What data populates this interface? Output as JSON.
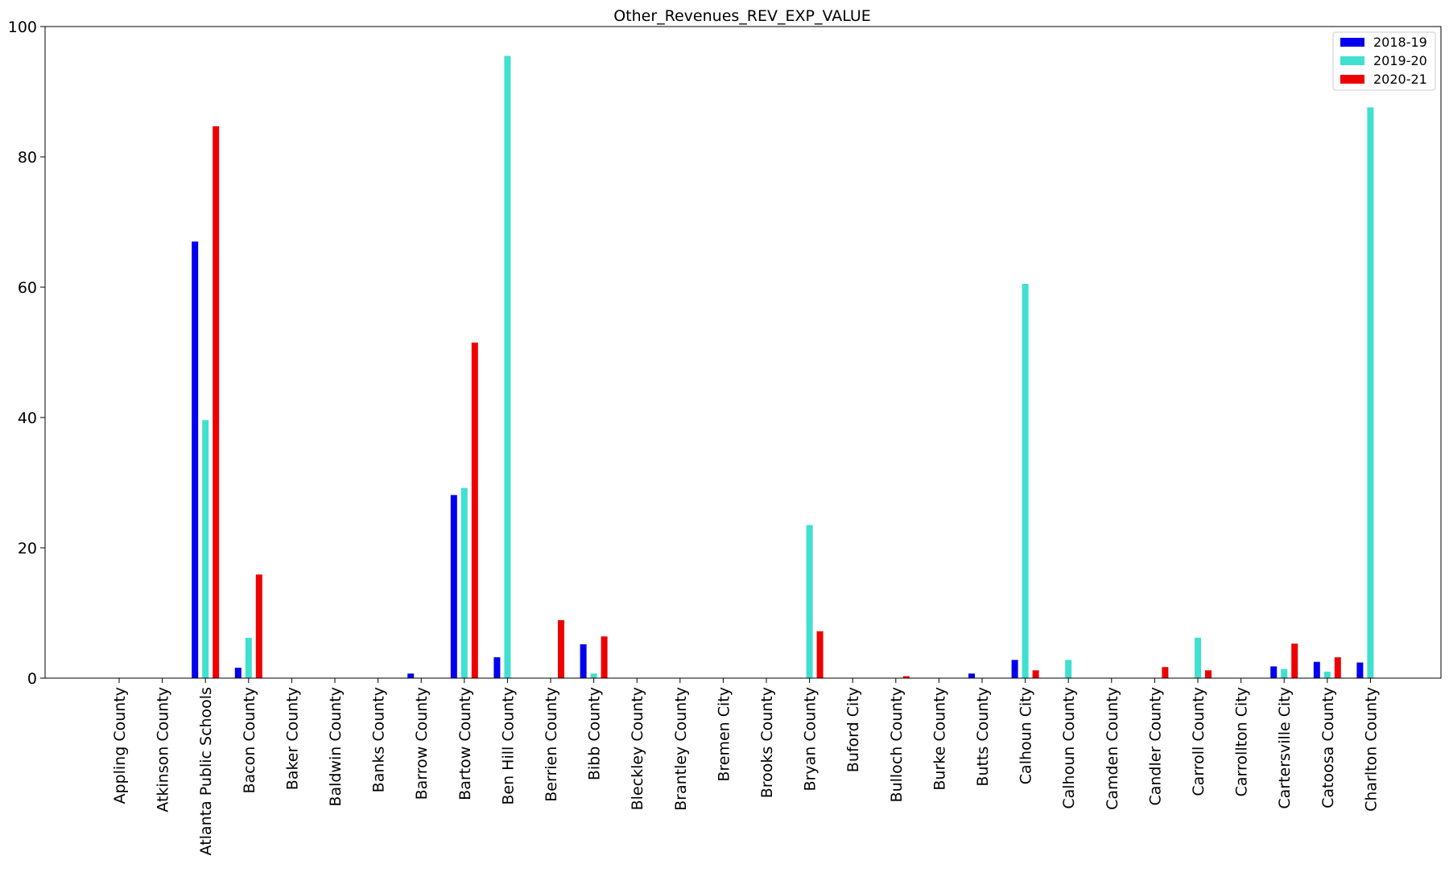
{
  "chart_data": {
    "type": "bar",
    "title": "Other_Revenues_REV_EXP_VALUE",
    "xlabel": "",
    "ylabel": "",
    "ylim": [
      0,
      100
    ],
    "yticks": [
      0,
      20,
      40,
      60,
      80,
      100
    ],
    "grid": false,
    "legend_position": "top-right",
    "categories": [
      "Appling County",
      "Atkinson County",
      "Atlanta Public Schools",
      "Bacon County",
      "Baker County",
      "Baldwin County",
      "Banks County",
      "Barrow County",
      "Bartow County",
      "Ben Hill County",
      "Berrien County",
      "Bibb County",
      "Bleckley County",
      "Brantley County",
      "Bremen City",
      "Brooks County",
      "Bryan County",
      "Buford City",
      "Bulloch County",
      "Burke County",
      "Butts County",
      "Calhoun City",
      "Calhoun County",
      "Camden County",
      "Candler County",
      "Carroll County",
      "Carrollton City",
      "Cartersville City",
      "Catoosa County",
      "Charlton County"
    ],
    "series": [
      {
        "name": "2018-19",
        "color": "#0000ee",
        "values": [
          0,
          0,
          67.0,
          1.6,
          0,
          0,
          0,
          0.7,
          28.1,
          3.2,
          0,
          5.2,
          0,
          0,
          0,
          0,
          0,
          0,
          0,
          0,
          0.7,
          2.8,
          0,
          0,
          0,
          0,
          0,
          1.8,
          2.5,
          2.4
        ]
      },
      {
        "name": "2019-20",
        "color": "#40e0d0",
        "values": [
          0,
          0,
          39.6,
          6.2,
          0,
          0,
          0,
          0,
          29.2,
          95.5,
          0,
          0.7,
          0,
          0,
          0,
          0,
          23.5,
          0,
          0,
          0,
          0,
          60.5,
          2.8,
          0,
          0,
          6.2,
          0,
          1.4,
          1.0,
          87.6
        ]
      },
      {
        "name": "2020-21",
        "color": "#ee0000",
        "values": [
          0,
          0,
          84.7,
          15.9,
          0,
          0,
          0,
          0,
          51.5,
          0,
          8.9,
          6.4,
          0,
          0,
          0,
          0,
          7.2,
          0,
          0.3,
          0,
          0,
          1.2,
          0,
          0,
          1.7,
          1.2,
          0,
          5.3,
          3.2,
          0
        ]
      }
    ]
  }
}
